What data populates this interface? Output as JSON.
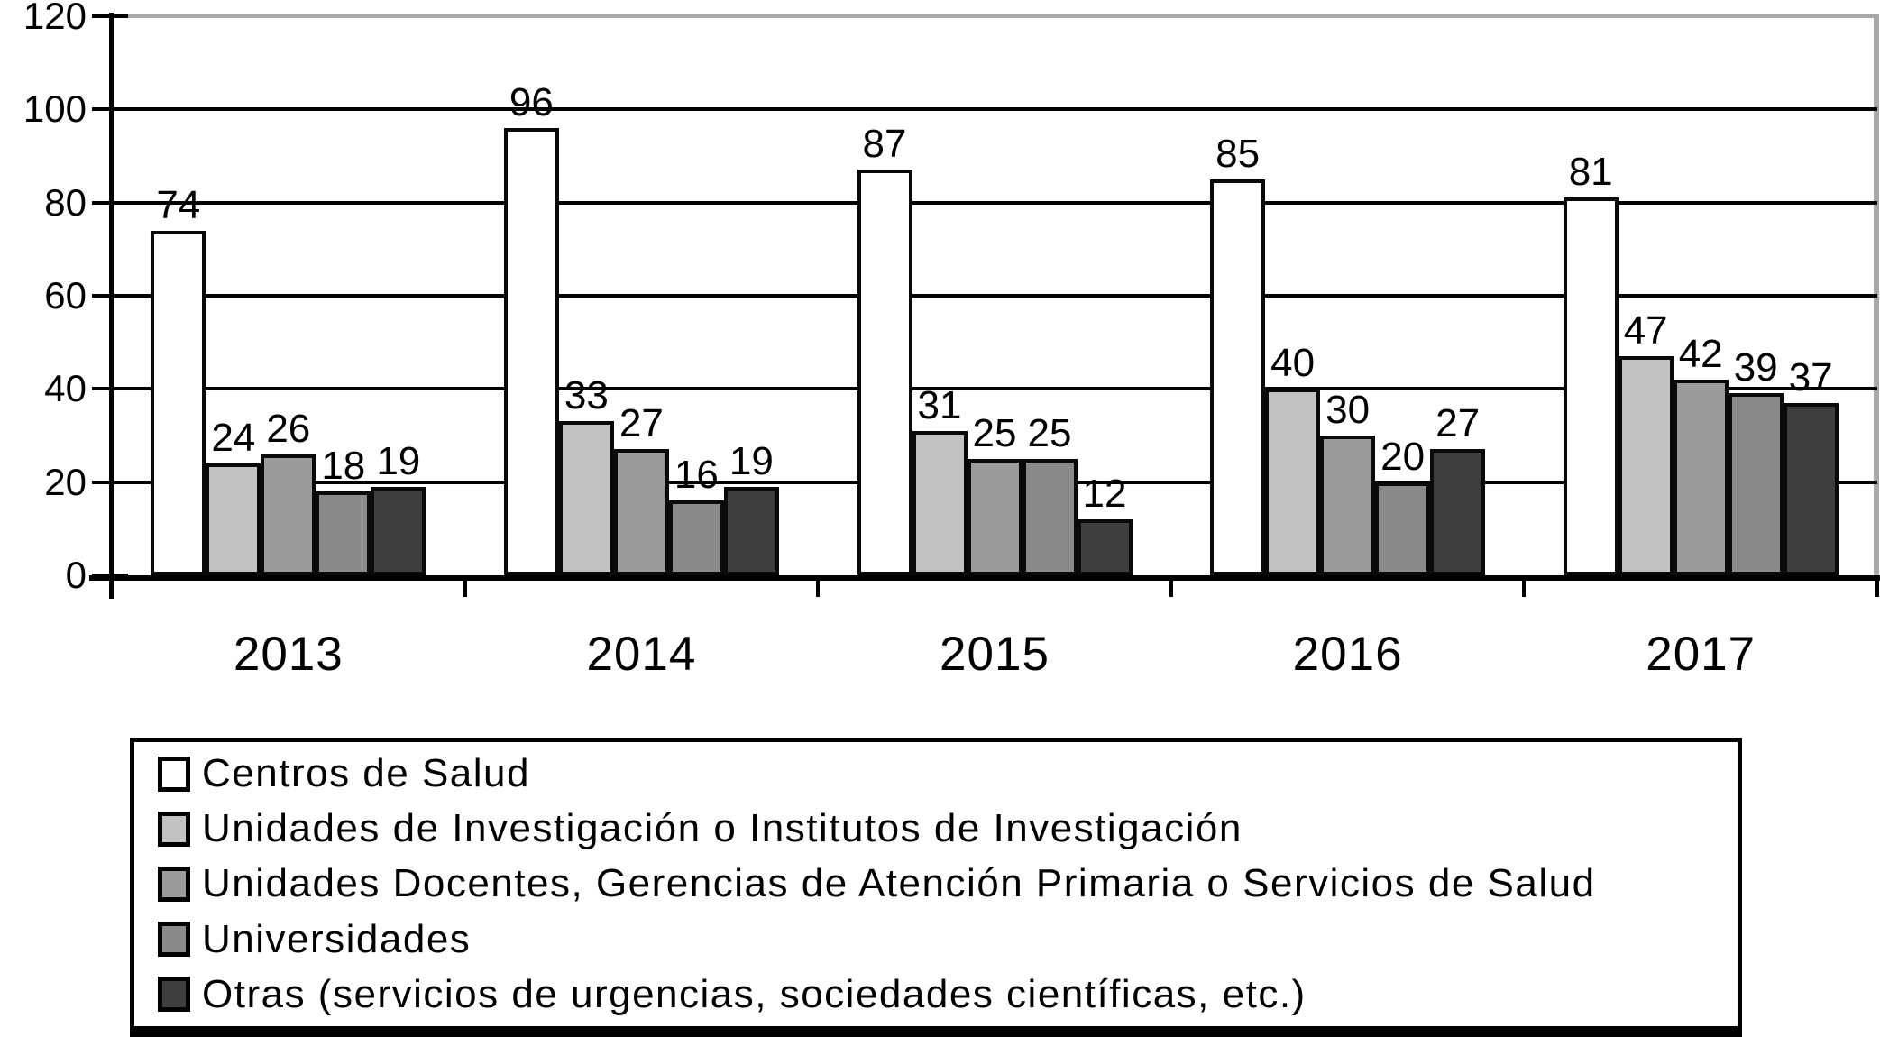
{
  "chart_data": {
    "type": "bar",
    "title": "",
    "xlabel": "",
    "ylabel": "",
    "categories": [
      "2013",
      "2014",
      "2015",
      "2016",
      "2017"
    ],
    "series": [
      {
        "name": "Centros de Salud",
        "color": "#ffffff",
        "values": [
          74,
          96,
          87,
          85,
          81
        ]
      },
      {
        "name": "Unidades de Investigación o Institutos de Investigación",
        "color": "#c2c2c2",
        "values": [
          24,
          33,
          31,
          40,
          47
        ]
      },
      {
        "name": "Unidades Docentes, Gerencias de Atención Primaria o Servicios de Salud",
        "color": "#9b9b9b",
        "values": [
          26,
          27,
          25,
          30,
          42
        ]
      },
      {
        "name": "Universidades",
        "color": "#8a8a8a",
        "values": [
          18,
          16,
          25,
          20,
          39
        ]
      },
      {
        "name": "Otras (servicios de urgencias, sociedades científicas, etc.)",
        "color": "#3e3e3e",
        "values": [
          19,
          19,
          12,
          27,
          37
        ]
      }
    ],
    "ylim": [
      0,
      120
    ],
    "yticks": [
      0,
      20,
      40,
      60,
      80,
      100,
      120
    ],
    "grid": true,
    "bar_value_labels": true,
    "legend_position": "bottom-box"
  }
}
